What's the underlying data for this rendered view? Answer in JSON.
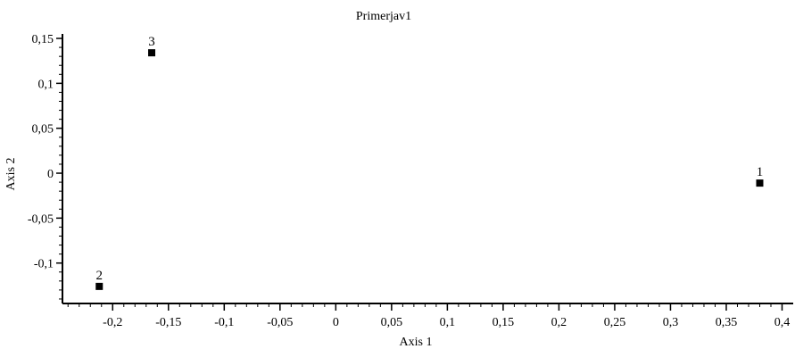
{
  "chart_data": {
    "type": "scatter",
    "title": "Primerjav1",
    "xlabel": "Axis 1",
    "ylabel": "Axis 2",
    "xlim": [
      -0.245,
      0.41
    ],
    "ylim": [
      -0.145,
      0.155
    ],
    "x_ticks": [
      -0.2,
      -0.15,
      -0.1,
      -0.05,
      0,
      0.05,
      0.1,
      0.15,
      0.2,
      0.25,
      0.3,
      0.35,
      0.4
    ],
    "x_tick_labels": [
      "-0,2",
      "-0,15",
      "-0,1",
      "-0,05",
      "0",
      "0,05",
      "0,1",
      "0,15",
      "0,2",
      "0,25",
      "0,3",
      "0,35",
      "0,4"
    ],
    "y_ticks": [
      0.15,
      0.1,
      0.05,
      0,
      -0.05,
      -0.1
    ],
    "y_tick_labels": [
      "0,15",
      "0,1",
      "0,05",
      "0",
      "-0,05",
      "-0,1"
    ],
    "grid": false,
    "marker": "square",
    "marker_color": "#000000",
    "points": [
      {
        "label": "1",
        "x": 0.38,
        "y": -0.011
      },
      {
        "label": "2",
        "x": -0.212,
        "y": -0.126
      },
      {
        "label": "3",
        "x": -0.165,
        "y": 0.134
      }
    ]
  }
}
